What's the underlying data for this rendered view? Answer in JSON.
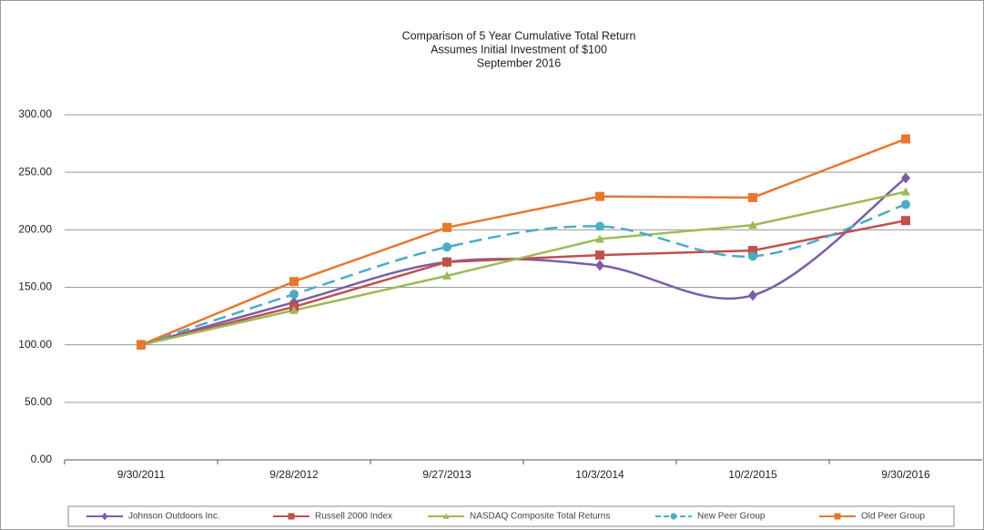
{
  "chart_data": {
    "type": "line",
    "title": "Comparison of 5 Year Cumulative Total Return",
    "subtitle": [
      "Assumes Initial Investment of $100",
      "September 2016"
    ],
    "categories": [
      "9/30/2011",
      "9/28/2012",
      "9/27/2013",
      "10/3/2014",
      "10/2/2015",
      "9/30/2016"
    ],
    "ylim": [
      0,
      300
    ],
    "yticks": [
      {
        "value": 0,
        "label": "0.00"
      },
      {
        "value": 50,
        "label": "50.00"
      },
      {
        "value": 100,
        "label": "100.00"
      },
      {
        "value": 150,
        "label": "150.00"
      },
      {
        "value": 200,
        "label": "200.00"
      },
      {
        "value": 250,
        "label": "250.00"
      },
      {
        "value": 300,
        "label": "300.00"
      }
    ],
    "grid": true,
    "legend": "bottom",
    "series": [
      {
        "name": "Johnson Outdoors Inc.",
        "color": "#7b5ea7",
        "marker": "diamond",
        "smooth": true,
        "values": [
          100,
          137,
          172,
          169,
          143,
          245
        ]
      },
      {
        "name": "Russell 2000 Index",
        "color": "#c0504d",
        "marker": "square",
        "values": [
          100,
          133,
          172,
          178,
          182,
          208
        ]
      },
      {
        "name": "NASDAQ Composite Total Returns",
        "color": "#9bbb59",
        "marker": "triangle",
        "values": [
          100,
          130,
          160,
          192,
          204,
          233
        ]
      },
      {
        "name": "New Peer Group",
        "color": "#4bacc6",
        "marker": "circle",
        "dash": true,
        "smooth": true,
        "values": [
          100,
          144,
          185,
          203,
          177,
          222
        ]
      },
      {
        "name": "Old Peer Group",
        "color": "#e8772e",
        "marker": "square",
        "values": [
          100,
          155,
          202,
          229,
          228,
          279
        ]
      }
    ]
  }
}
